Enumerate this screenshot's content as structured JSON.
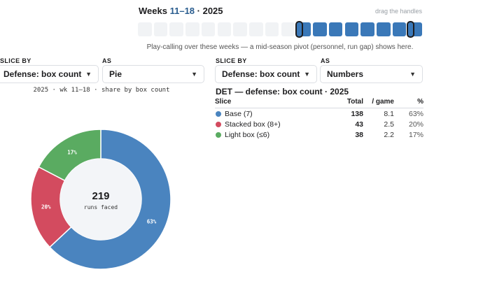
{
  "header": {
    "weeks_prefix": "Weeks",
    "weeks_range": "11–18",
    "weeks_suffix": "· 2025",
    "hint": "drag the handles",
    "caption": "Play-calling over these weeks — a mid-season pivot (personnel, run gap) shows here.",
    "weeks": [
      {
        "week": 1,
        "selected": false
      },
      {
        "week": 2,
        "selected": false
      },
      {
        "week": 3,
        "selected": false
      },
      {
        "week": 4,
        "selected": false
      },
      {
        "week": 5,
        "selected": false
      },
      {
        "week": 6,
        "selected": false
      },
      {
        "week": 7,
        "selected": false
      },
      {
        "week": 8,
        "selected": false
      },
      {
        "week": 9,
        "selected": false
      },
      {
        "week": 10,
        "selected": false
      },
      {
        "week": 11,
        "selected": true
      },
      {
        "week": 12,
        "selected": true
      },
      {
        "week": 13,
        "selected": true
      },
      {
        "week": 14,
        "selected": true
      },
      {
        "week": 15,
        "selected": true
      },
      {
        "week": 16,
        "selected": true
      },
      {
        "week": 17,
        "selected": true
      },
      {
        "week": 18,
        "selected": true
      }
    ],
    "selected_start": 11,
    "selected_end": 18,
    "selected_color": "#3a78b8",
    "unselected_color": "#f1f3f5"
  },
  "left_panel": {
    "slice_by_label": "SLICE BY",
    "slice_by_value": "Defense: box count",
    "as_label": "AS",
    "as_value": "Pie",
    "subtitle": "2025 · wk 11–18 · share by box count",
    "center_value": "219",
    "center_label": "runs faced"
  },
  "right_panel": {
    "slice_by_label": "SLICE BY",
    "slice_by_value": "Defense: box count",
    "as_label": "AS",
    "as_value": "Numbers",
    "title": "DET — defense: box count · 2025",
    "columns": [
      "Slice",
      "Total",
      "/ game",
      "%"
    ],
    "rows": [
      {
        "slice": "Base (7)",
        "total": "138",
        "per_game": "8.1",
        "pct": "63%",
        "color": "#4a84bf"
      },
      {
        "slice": "Stacked box (8+)",
        "total": "43",
        "per_game": "2.5",
        "pct": "20%",
        "color": "#d34b5f"
      },
      {
        "slice": "Light box (≤6)",
        "total": "38",
        "per_game": "2.2",
        "pct": "17%",
        "color": "#5aab61"
      }
    ]
  },
  "chart_data": {
    "type": "pie",
    "donut": true,
    "categories": [
      "Base (7)",
      "Stacked box (8+)",
      "Light box (≤6)"
    ],
    "values": [
      138,
      43,
      38
    ],
    "labels": [
      "63%",
      "20%",
      "17%"
    ],
    "colors": [
      "#4a84bf",
      "#d34b5f",
      "#5aab61"
    ],
    "total": 219
  }
}
